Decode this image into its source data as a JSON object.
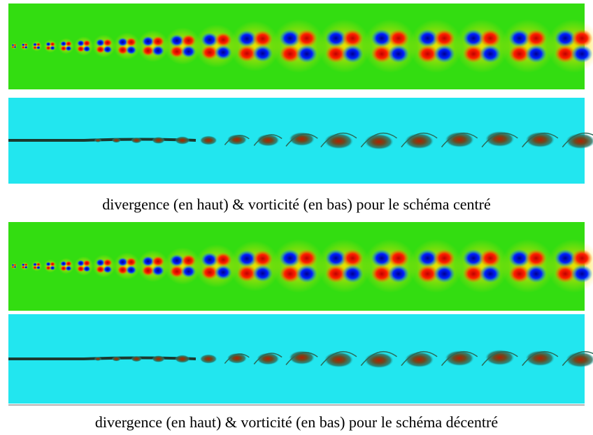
{
  "figure": {
    "captions": [
      "divergence (en haut) & vorticité (en bas) pour le schéma centré",
      "divergence (en haut) & vorticité (en bas) pour le schéma décentré"
    ]
  }
}
